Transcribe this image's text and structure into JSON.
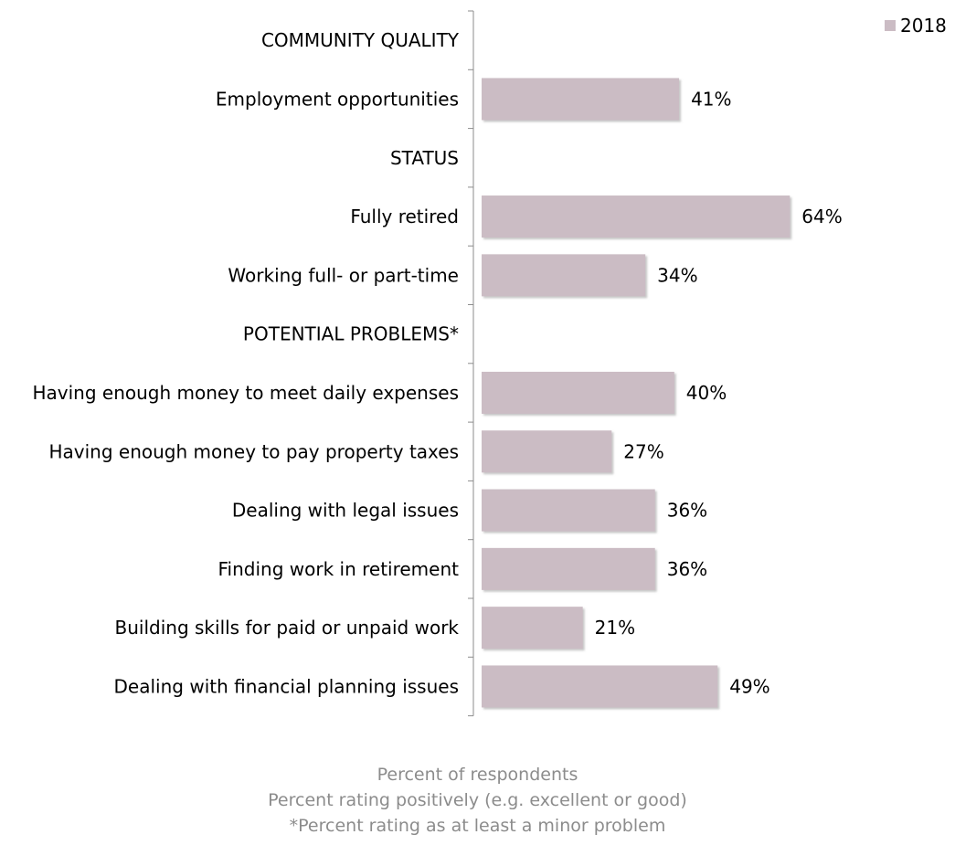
{
  "chart_data": {
    "type": "bar",
    "orientation": "horizontal",
    "categories": [
      "COMMUNITY QUALITY",
      "Employment opportunities",
      "STATUS",
      "Fully retired",
      "Working full- or part-time",
      "POTENTIAL PROBLEMS*",
      "Having enough money to meet daily expenses",
      "Having enough money to pay property taxes",
      "Dealing with legal issues",
      "Finding work in retirement",
      "Building skills for paid or unpaid work",
      "Dealing with financial planning issues"
    ],
    "series": [
      {
        "name": "2018",
        "values": [
          null,
          41,
          null,
          64,
          34,
          null,
          40,
          27,
          36,
          36,
          21,
          49
        ],
        "data_labels": [
          "",
          "41%",
          "",
          "64%",
          "34%",
          "",
          "40%",
          "27%",
          "36%",
          "36%",
          "21%",
          "49%"
        ]
      }
    ],
    "xlim": [
      0,
      100
    ],
    "x_axis_visible": false,
    "grid": false,
    "legend_position": "top-right",
    "bar_color": "#cbbcc4",
    "footnotes": [
      "Percent of respondents",
      "Percent rating positively (e.g. excellent or good)",
      "*Percent rating as at least a minor problem"
    ]
  }
}
